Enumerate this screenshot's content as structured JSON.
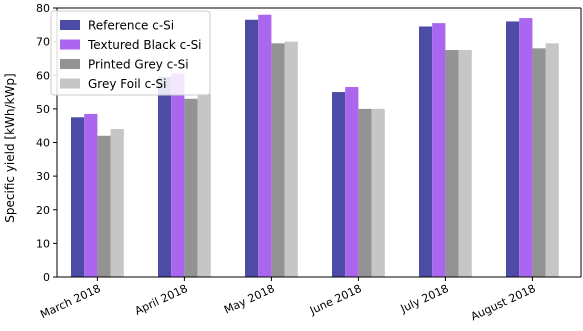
{
  "chart_data": {
    "type": "bar",
    "title": "",
    "xlabel": "",
    "ylabel": "Specific yield [kWh/kWp]",
    "ylim": [
      0,
      80
    ],
    "yticks": [
      0,
      10,
      20,
      30,
      40,
      50,
      60,
      70,
      80
    ],
    "grid": false,
    "legend_position": "top-left",
    "categories": [
      "March 2018",
      "April 2018",
      "May 2018",
      "June 2018",
      "July 2018",
      "August 2018"
    ],
    "series": [
      {
        "name": "Reference c-Si",
        "color": "#4c4ca6",
        "values": [
          47.5,
          59.5,
          76.5,
          55.0,
          74.5,
          76.0
        ]
      },
      {
        "name": "Textured Black c-Si",
        "color": "#aa66ee",
        "values": [
          48.5,
          60.5,
          78.0,
          56.5,
          75.5,
          77.0
        ]
      },
      {
        "name": "Printed Grey c-Si",
        "color": "#939393",
        "values": [
          42.0,
          53.0,
          69.5,
          50.0,
          67.5,
          68.0
        ]
      },
      {
        "name": "Grey Foil c-Si",
        "color": "#c6c6c6",
        "values": [
          44.0,
          54.5,
          70.0,
          50.0,
          67.5,
          69.5
        ]
      }
    ]
  }
}
